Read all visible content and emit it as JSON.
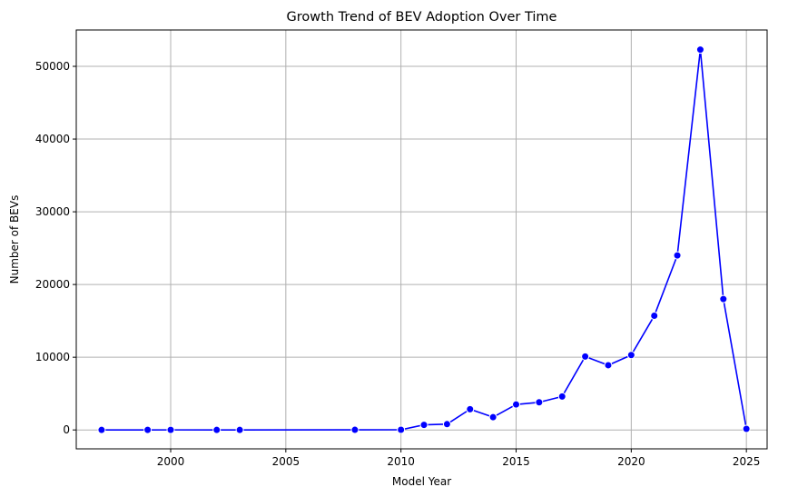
{
  "chart_data": {
    "type": "line",
    "title": "Growth Trend of BEV Adoption Over Time",
    "xlabel": "Model Year",
    "ylabel": "Number of BEVs",
    "xlim": [
      1995.9,
      2025.9
    ],
    "ylim": [
      -2600,
      55000
    ],
    "x_ticks": [
      2000,
      2005,
      2010,
      2015,
      2020,
      2025
    ],
    "y_ticks": [
      0,
      10000,
      20000,
      30000,
      40000,
      50000
    ],
    "grid": true,
    "color": "#0000ff",
    "marker": "circle",
    "series": [
      {
        "x": [
          1997,
          1999,
          2000,
          2002,
          2003,
          2008,
          2010,
          2011,
          2012,
          2013,
          2014,
          2015,
          2016,
          2017,
          2018,
          2019,
          2020,
          2021,
          2022,
          2023,
          2024,
          2025
        ],
        "y": [
          1,
          5,
          7,
          2,
          1,
          19,
          24,
          700,
          800,
          2850,
          1750,
          3500,
          3800,
          4600,
          10100,
          8900,
          10300,
          15700,
          24000,
          52300,
          18000,
          150
        ]
      }
    ]
  }
}
